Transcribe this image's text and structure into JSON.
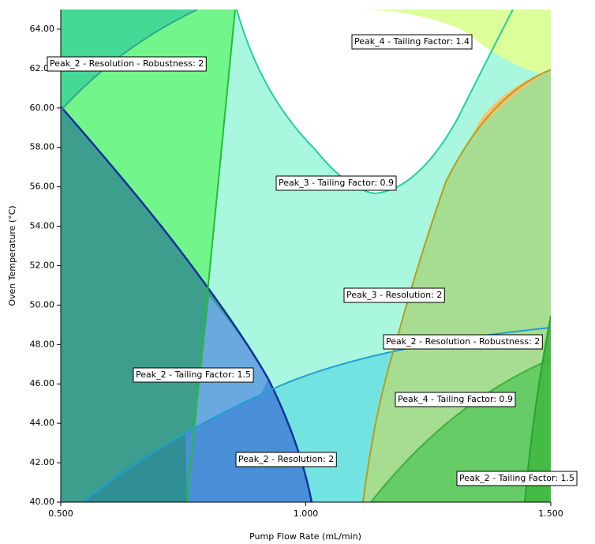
{
  "chart_data": {
    "type": "overlay",
    "xlabel": "Pump Flow Rate (mL/min)",
    "ylabel": "Oven Temperature (°C)",
    "xlim": [
      0.5,
      1.5
    ],
    "ylim": [
      40,
      65
    ],
    "xticks": [
      {
        "value": 0.5,
        "label": "0.500"
      },
      {
        "value": 1,
        "label": "1.000"
      },
      {
        "value": 1.5,
        "label": "1.500"
      }
    ],
    "yticks": [
      {
        "value": 40,
        "label": "40.00"
      },
      {
        "value": 42,
        "label": "42.00"
      },
      {
        "value": 44,
        "label": "44.00"
      },
      {
        "value": 46,
        "label": "46.00"
      },
      {
        "value": 48,
        "label": "48.00"
      },
      {
        "value": 50,
        "label": "50.00"
      },
      {
        "value": 52,
        "label": "52.00"
      },
      {
        "value": 54,
        "label": "54.00"
      },
      {
        "value": 56,
        "label": "56.00"
      },
      {
        "value": 58,
        "label": "58.00"
      },
      {
        "value": 60,
        "label": "60.00"
      },
      {
        "value": 62,
        "label": "62.00"
      },
      {
        "value": 64,
        "label": "64.00"
      }
    ],
    "annotations": [
      "Peak_4 - Tailing Factor: 1.4",
      "Peak_2 - Resolution - Robustness: 2",
      "Peak_3 - Tailing Factor: 0.9",
      "Peak_3 - Resolution: 2",
      "Peak_2 - Resolution - Robustness: 2",
      "Peak_2 - Tailing Factor: 1.5",
      "Peak_4 - Tailing Factor: 0.9",
      "Peak_2 - Resolution: 2",
      "Peak_2 - Tailing Factor: 1.5"
    ]
  }
}
